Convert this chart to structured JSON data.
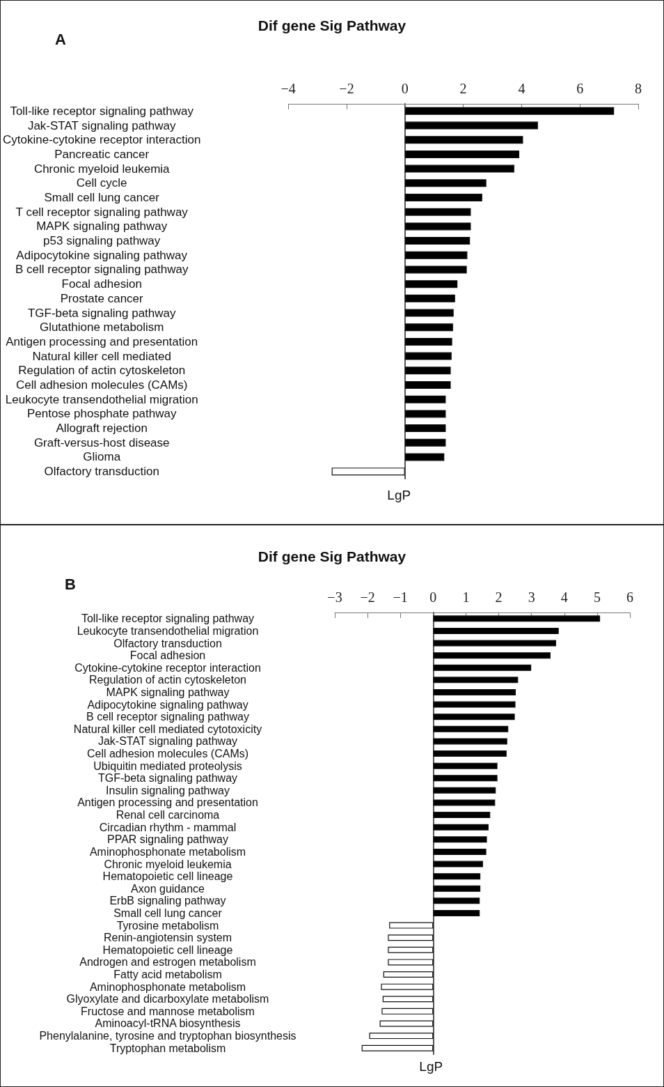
{
  "chart_data": [
    {
      "type": "bar",
      "orientation": "horizontal",
      "title": "Dif gene Sig Pathway",
      "xlabel": "LgP",
      "annotations": [
        "A"
      ],
      "categories": [
        "Toll-like receptor signaling pathway",
        "Jak-STAT signaling pathway",
        "Cytokine-cytokine receptor interaction",
        "Pancreatic cancer",
        "Chronic myeloid leukemia",
        "Cell cycle",
        "Small cell lung cancer",
        "T cell receptor signaling pathway",
        "MAPK signaling pathway",
        "p53 signaling pathway",
        "Adipocytokine signaling pathway",
        "B cell receptor signaling pathway",
        "Focal adhesion",
        "Prostate cancer",
        "TGF-beta signaling pathway",
        "Glutathione metabolism",
        "Antigen processing and presentation",
        "Natural killer cell mediated",
        "Regulation of actin cytoskeleton",
        "Cell adhesion molecules (CAMs)",
        "Leukocyte transendothelial migration",
        "Pentose phosphate pathway",
        "Allograft rejection",
        "Graft-versus-host disease",
        "Glioma",
        "Olfactory transduction"
      ],
      "values": [
        7.17,
        4.56,
        4.05,
        3.92,
        3.75,
        2.79,
        2.65,
        2.26,
        2.26,
        2.23,
        2.14,
        2.12,
        1.8,
        1.72,
        1.67,
        1.65,
        1.62,
        1.6,
        1.57,
        1.57,
        1.4,
        1.4,
        1.4,
        1.4,
        1.35,
        -2.51
      ],
      "colors": [
        "#000000",
        "#000000",
        "#000000",
        "#000000",
        "#000000",
        "#000000",
        "#000000",
        "#000000",
        "#000000",
        "#000000",
        "#000000",
        "#000000",
        "#000000",
        "#000000",
        "#000000",
        "#000000",
        "#000000",
        "#000000",
        "#000000",
        "#000000",
        "#000000",
        "#000000",
        "#000000",
        "#000000",
        "#000000",
        "#ffffff"
      ],
      "xlim": [
        -4,
        8
      ],
      "xticks": [
        -4,
        -2,
        0,
        2,
        4,
        6,
        8
      ]
    },
    {
      "type": "bar",
      "orientation": "horizontal",
      "title": "Dif gene Sig Pathway",
      "xlabel": "LgP",
      "annotations": [
        "B"
      ],
      "categories": [
        "Toll-like receptor signaling pathway",
        "Leukocyte transendothelial migration",
        "Olfactory transduction",
        "Focal adhesion",
        "Cytokine-cytokine receptor interaction",
        "Regulation of actin cytoskeleton",
        "MAPK signaling pathway",
        "Adipocytokine signaling pathway",
        "B cell receptor signaling pathway",
        "Natural killer cell mediated cytotoxicity",
        "Jak-STAT signaling pathway",
        "Cell adhesion molecules (CAMs)",
        "Ubiquitin mediated proteolysis",
        "TGF-beta signaling pathway",
        "Insulin signaling pathway",
        "Antigen processing and presentation",
        "Renal cell carcinoma",
        "Circadian rhythm - mammal",
        "PPAR signaling pathway",
        "Aminophosphonate metabolism",
        "Chronic myeloid leukemia",
        "Hematopoietic cell lineage",
        "Axon guidance",
        "ErbB signaling pathway",
        "Small cell lung cancer",
        "Tyrosine metabolism",
        "Renin-angiotensin system",
        "Hematopoietic cell lineage",
        "Androgen and estrogen metabolism",
        "Fatty acid metabolism",
        "Aminophosphonate metabolism",
        "Glyoxylate and dicarboxylate metabolism",
        "Fructose and mannose metabolism",
        "Aminoacyl-tRNA biosynthesis",
        "Phenylalanine, tyrosine and tryptophan biosynthesis",
        "Tryptophan metabolism"
      ],
      "values": [
        5.09,
        3.83,
        3.75,
        3.58,
        2.99,
        2.59,
        2.52,
        2.51,
        2.49,
        2.29,
        2.26,
        2.24,
        1.96,
        1.96,
        1.91,
        1.89,
        1.74,
        1.69,
        1.64,
        1.62,
        1.52,
        1.44,
        1.44,
        1.42,
        1.42,
        -1.34,
        -1.38,
        -1.38,
        -1.38,
        -1.52,
        -1.59,
        -1.54,
        -1.57,
        -1.63,
        -1.95,
        -2.18
      ],
      "colors": [
        "#000000",
        "#000000",
        "#000000",
        "#000000",
        "#000000",
        "#000000",
        "#000000",
        "#000000",
        "#000000",
        "#000000",
        "#000000",
        "#000000",
        "#000000",
        "#000000",
        "#000000",
        "#000000",
        "#000000",
        "#000000",
        "#000000",
        "#000000",
        "#000000",
        "#000000",
        "#000000",
        "#000000",
        "#000000",
        "#ffffff",
        "#ffffff",
        "#ffffff",
        "#ffffff",
        "#ffffff",
        "#ffffff",
        "#ffffff",
        "#ffffff",
        "#ffffff",
        "#ffffff",
        "#ffffff"
      ],
      "xlim": [
        -3,
        6
      ],
      "xticks": [
        -3,
        -2,
        -1,
        0,
        1,
        2,
        3,
        4,
        5,
        6
      ]
    }
  ]
}
